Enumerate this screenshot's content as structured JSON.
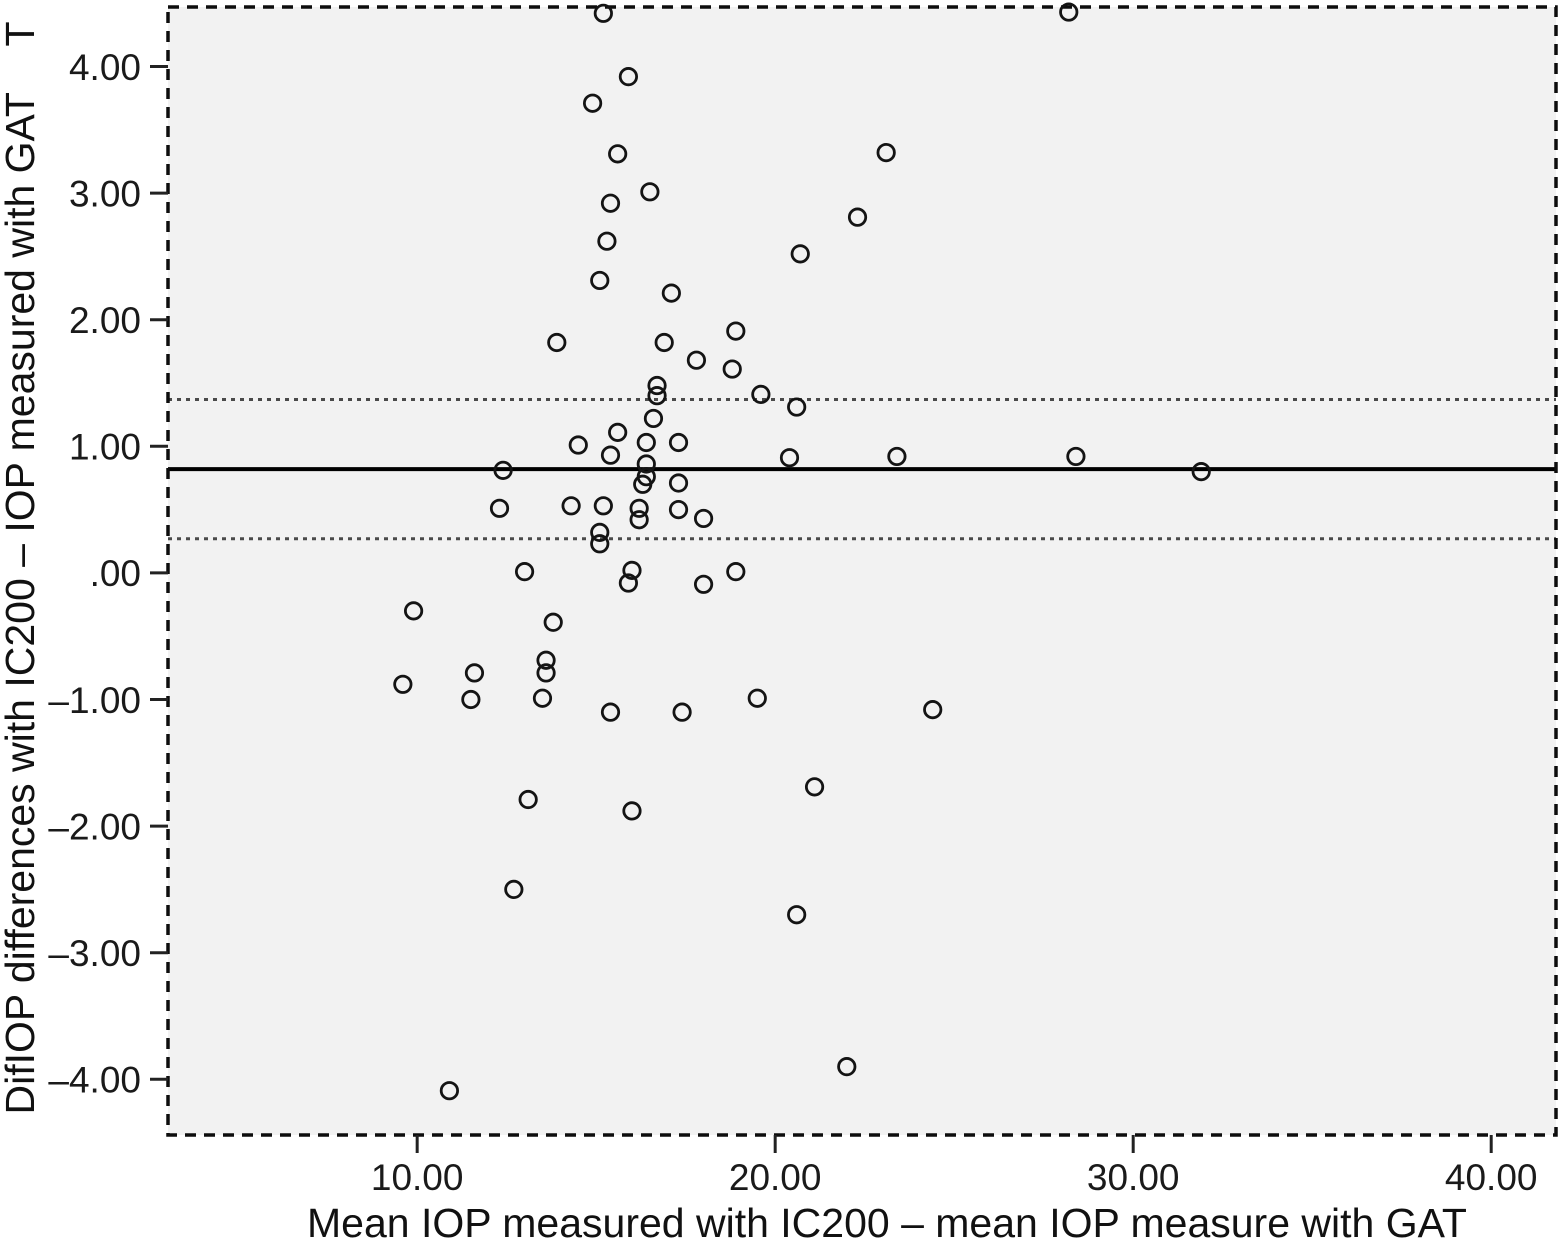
{
  "figure": {
    "kind": "Bland-Altman scatter plot (SPSS style)",
    "background": "#ffffff"
  },
  "chart_data": {
    "type": "scatter",
    "title": "",
    "xlabel": "Mean IOP measured with IC200 – mean IOP measure with GAT",
    "ylabel": "DifIOP differences with IC200 – IOP measured with GAT    T",
    "xlim": [
      3.04,
      41.81
    ],
    "ylim": [
      -4.44,
      4.47
    ],
    "grid": false,
    "legend": false,
    "x_ticks": [
      {
        "value": 10,
        "label": "10.00"
      },
      {
        "value": 20,
        "label": "20.00"
      },
      {
        "value": 30,
        "label": "30.00"
      },
      {
        "value": 40,
        "label": "40.00"
      }
    ],
    "y_ticks": [
      {
        "value": 4,
        "label": "4.00"
      },
      {
        "value": 3,
        "label": "3.00"
      },
      {
        "value": 2,
        "label": "2.00"
      },
      {
        "value": 1,
        "label": "1.00"
      },
      {
        "value": 0,
        "label": ".00"
      },
      {
        "value": -1,
        "label": "–1.00"
      },
      {
        "value": -2,
        "label": "–2.00"
      },
      {
        "value": -3,
        "label": "–3.00"
      },
      {
        "value": -4,
        "label": "–4.00"
      }
    ],
    "reference_lines": {
      "mean": 0.82,
      "upper_limit": 1.37,
      "lower_limit": 0.27
    },
    "points": [
      [
        15.2,
        4.42
      ],
      [
        28.2,
        4.43
      ],
      [
        15.9,
        3.92
      ],
      [
        14.9,
        3.71
      ],
      [
        15.6,
        3.31
      ],
      [
        23.1,
        3.32
      ],
      [
        16.5,
        3.01
      ],
      [
        15.4,
        2.92
      ],
      [
        22.3,
        2.81
      ],
      [
        15.3,
        2.62
      ],
      [
        20.7,
        2.52
      ],
      [
        15.1,
        2.31
      ],
      [
        17.1,
        2.21
      ],
      [
        18.9,
        1.91
      ],
      [
        13.9,
        1.82
      ],
      [
        16.9,
        1.82
      ],
      [
        17.8,
        1.68
      ],
      [
        18.8,
        1.61
      ],
      [
        16.7,
        1.48
      ],
      [
        16.7,
        1.4
      ],
      [
        19.6,
        1.41
      ],
      [
        20.6,
        1.31
      ],
      [
        16.6,
        1.22
      ],
      [
        15.6,
        1.11
      ],
      [
        14.5,
        1.01
      ],
      [
        16.4,
        1.03
      ],
      [
        17.3,
        1.03
      ],
      [
        15.4,
        0.93
      ],
      [
        20.4,
        0.91
      ],
      [
        23.4,
        0.92
      ],
      [
        28.4,
        0.92
      ],
      [
        12.4,
        0.81
      ],
      [
        16.4,
        0.86
      ],
      [
        16.4,
        0.76
      ],
      [
        16.3,
        0.7
      ],
      [
        17.3,
        0.71
      ],
      [
        31.9,
        0.8
      ],
      [
        12.3,
        0.51
      ],
      [
        14.3,
        0.53
      ],
      [
        15.2,
        0.53
      ],
      [
        16.2,
        0.51
      ],
      [
        16.2,
        0.42
      ],
      [
        17.3,
        0.5
      ],
      [
        18.0,
        0.43
      ],
      [
        15.1,
        0.32
      ],
      [
        15.1,
        0.23
      ],
      [
        13.0,
        0.01
      ],
      [
        16.0,
        0.02
      ],
      [
        18.9,
        0.01
      ],
      [
        15.9,
        -0.08
      ],
      [
        18.0,
        -0.09
      ],
      [
        9.9,
        -0.3
      ],
      [
        13.8,
        -0.39
      ],
      [
        13.6,
        -0.69
      ],
      [
        13.6,
        -0.79
      ],
      [
        11.6,
        -0.79
      ],
      [
        9.6,
        -0.88
      ],
      [
        11.5,
        -1.0
      ],
      [
        13.5,
        -0.99
      ],
      [
        15.4,
        -1.1
      ],
      [
        17.4,
        -1.1
      ],
      [
        19.5,
        -0.99
      ],
      [
        24.4,
        -1.08
      ],
      [
        13.1,
        -1.79
      ],
      [
        21.1,
        -1.69
      ],
      [
        16.0,
        -1.88
      ],
      [
        12.7,
        -2.5
      ],
      [
        20.6,
        -2.7
      ],
      [
        22.0,
        -3.9
      ],
      [
        10.9,
        -4.09
      ]
    ],
    "colors": {
      "plot_background": "#f2f2f2",
      "marker_stroke": "#141414",
      "mean_line": "#000000",
      "limit_line": "#4a4a4a",
      "border": "#0d0d0d",
      "tick": "#222222"
    }
  }
}
